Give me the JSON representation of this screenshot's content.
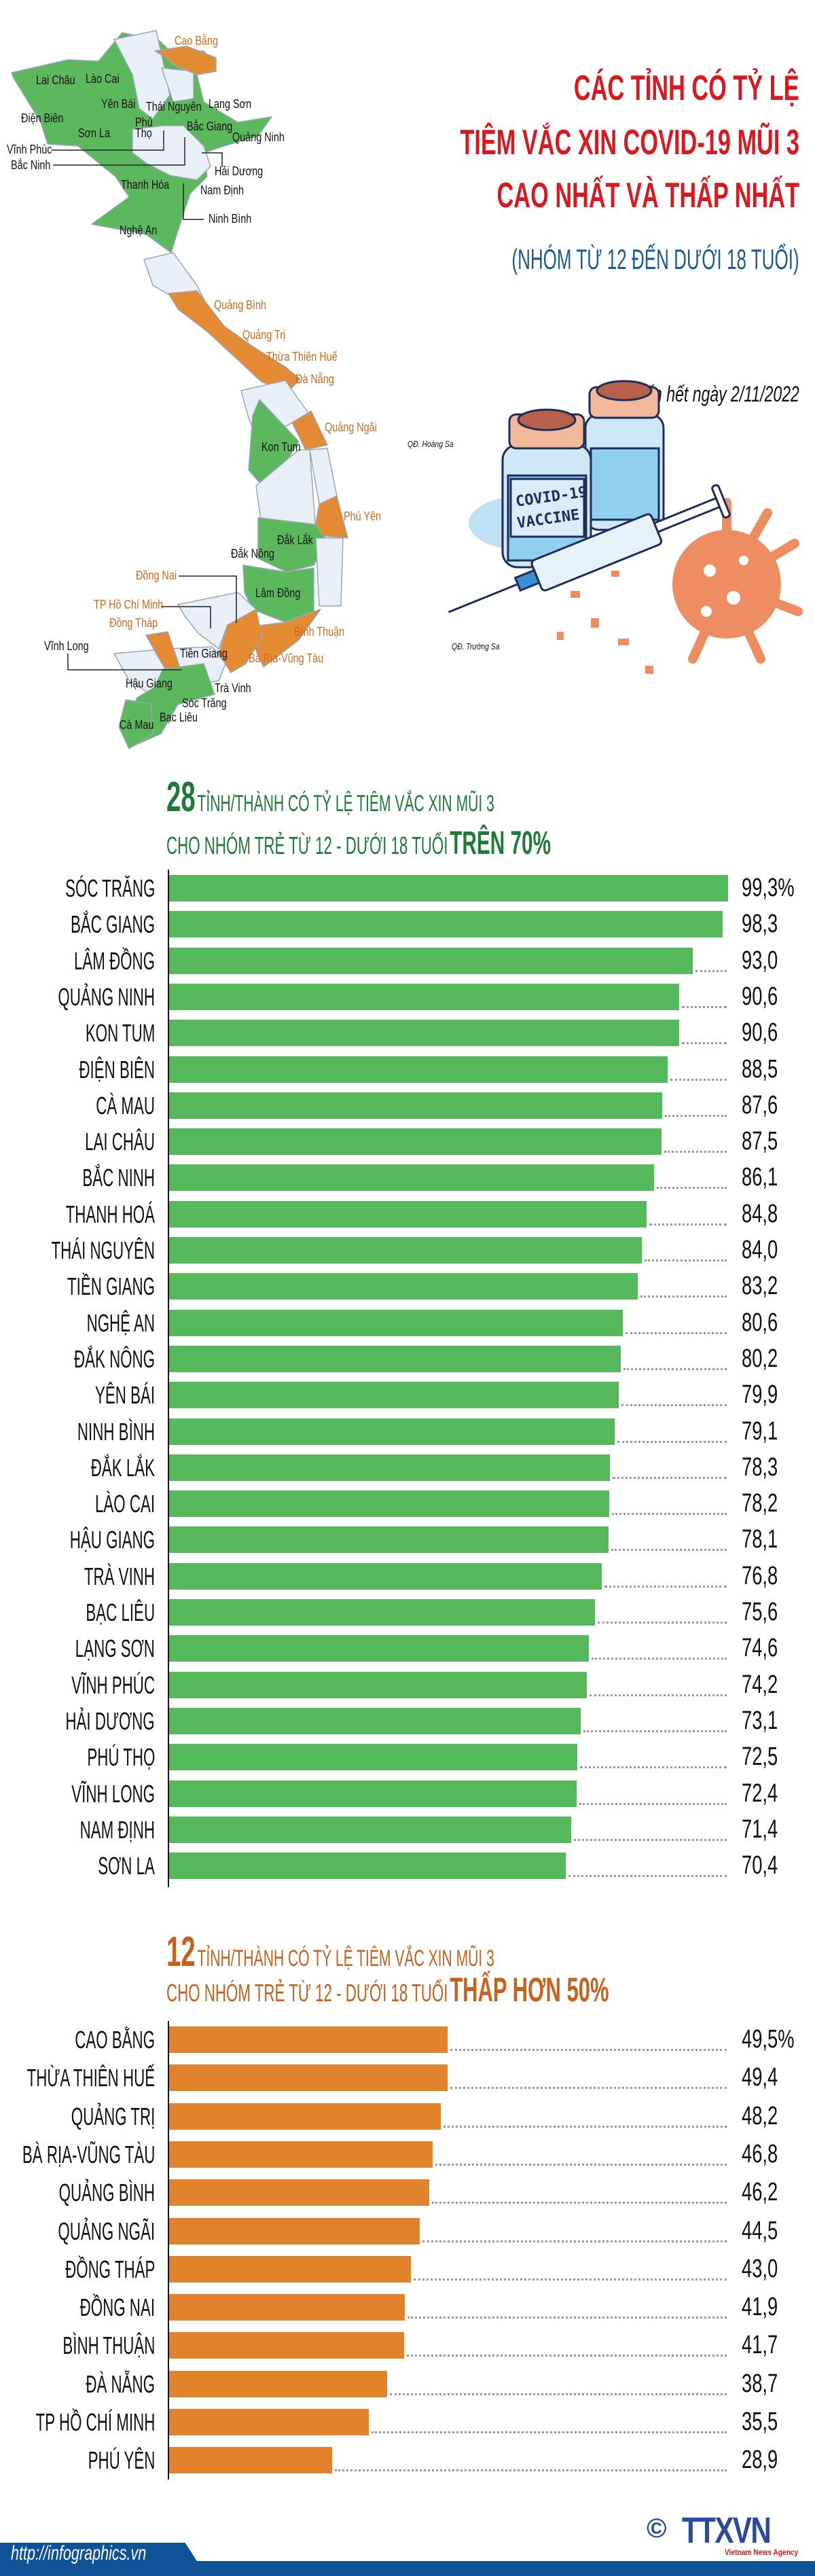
{
  "header": {
    "title_lines": [
      "CÁC TỈNH CÓ TỶ LỆ",
      "TIÊM VẮC XIN COVID-19 MŨI 3",
      "CAO NHẤT VÀ THẤP NHẤT"
    ],
    "subtitle": "(NHÓM TỪ 12 ĐẾN DƯỚI 18 TUỔI)",
    "date_note": "Tính đến hết ngày 2/11/2022",
    "title_color": "#d71920",
    "subtitle_color": "#1a5a9a"
  },
  "map": {
    "colors": {
      "above_70": "#5cb85c",
      "below_50": "#e48a33",
      "other": "#e9eff6"
    },
    "labels": [
      "Cao Bằng",
      "Lai Châu",
      "Lào Cai",
      "Yên Bái",
      "Thái Nguyên",
      "Lạng Sơn",
      "Điện Biên",
      "Phú Thọ",
      "Bắc Giang",
      "Quảng Ninh",
      "Sơn La",
      "Vĩnh Phúc",
      "Bắc Ninh",
      "Hải Dương",
      "Thanh Hóa",
      "Nam Định",
      "Ninh Bình",
      "Nghệ An",
      "Quảng Bình",
      "Quảng Trị",
      "Thừa Thiên Huế",
      "Đà Nẵng",
      "Quảng Ngãi",
      "Kon Tum",
      "Phú Yên",
      "Đắk Lắk",
      "Đắk Nông",
      "Đồng Nai",
      "Lâm Đồng",
      "TP Hồ Chí Minh",
      "Đồng Tháp",
      "Bình Thuận",
      "Vĩnh Long",
      "Tiền Giang",
      "Bà Rịa-Vũng Tàu",
      "Hậu Giang",
      "Trà Vinh",
      "Sóc Trăng",
      "Bạc Liêu",
      "Cà Mau"
    ],
    "islands": [
      "QĐ. Hoàng Sa",
      "QĐ. Trường Sa"
    ]
  },
  "illustration": {
    "vial_label_line1": "COVID-19",
    "vial_label_line2": "VACCINE"
  },
  "chart_data": [
    {
      "type": "bar",
      "orientation": "horizontal",
      "count": "28",
      "title_line1": "TỈNH/THÀNH CÓ TỶ LỆ TIÊM VẮC XIN MŨI 3",
      "title_line2": "CHO NHÓM TRẺ TỪ 12 - DƯỚI 18 TUỔI",
      "title_emphasis": "TRÊN 70%",
      "color": "#55b95b",
      "title_color": "#1f7a3a",
      "unit": "%",
      "xlim": [
        0,
        100
      ],
      "grid": false,
      "categories": [
        "SÓC TRĂNG",
        "BẮC GIANG",
        "LÂM ĐỒNG",
        "QUẢNG NINH",
        "KON TUM",
        "ĐIỆN BIÊN",
        "CÀ MAU",
        "LAI CHÂU",
        "BẮC NINH",
        "THANH HOÁ",
        "THÁI NGUYÊN",
        "TIỀN GIANG",
        "NGHỆ AN",
        "ĐẮK NÔNG",
        "YÊN BÁI",
        "NINH BÌNH",
        "ĐẮK LẮK",
        "LÀO CAI",
        "HẬU GIANG",
        "TRÀ VINH",
        "BẠC LIÊU",
        "LẠNG SƠN",
        "VĨNH PHÚC",
        "HẢI DƯƠNG",
        "PHÚ THỌ",
        "VĨNH LONG",
        "NAM ĐỊNH",
        "SƠN LA"
      ],
      "values": [
        99.3,
        98.3,
        93.0,
        90.6,
        90.6,
        88.5,
        87.6,
        87.5,
        86.1,
        84.8,
        84.0,
        83.2,
        80.6,
        80.2,
        79.9,
        79.1,
        78.3,
        78.2,
        78.1,
        76.8,
        75.6,
        74.6,
        74.2,
        73.1,
        72.5,
        72.4,
        71.4,
        70.4
      ],
      "value_labels": [
        "99,3%",
        "98,3",
        "93,0",
        "90,6",
        "90,6",
        "88,5",
        "87,6",
        "87,5",
        "86,1",
        "84,8",
        "84,0",
        "83,2",
        "80,6",
        "80,2",
        "79,9",
        "79,1",
        "78,3",
        "78,2",
        "78,1",
        "76,8",
        "75,6",
        "74,6",
        "74,2",
        "73,1",
        "72,5",
        "72,4",
        "71,4",
        "70,4"
      ]
    },
    {
      "type": "bar",
      "orientation": "horizontal",
      "count": "12",
      "title_line1": "TỈNH/THÀNH CÓ TỶ LỆ TIÊM VẮC XIN MŨI 3",
      "title_line2": "CHO NHÓM TRẺ TỪ 12 - DƯỚI 18 TUỔI",
      "title_emphasis": "THẤP HƠN 50%",
      "color": "#e2822a",
      "title_color": "#c8601e",
      "unit": "%",
      "xlim": [
        0,
        100
      ],
      "grid": false,
      "categories": [
        "CAO BẰNG",
        "THỪA THIÊN HUẾ",
        "QUẢNG TRỊ",
        "BÀ RỊA-VŨNG TÀU",
        "QUẢNG BÌNH",
        "QUẢNG NGÃI",
        "ĐỒNG THÁP",
        "ĐỒNG NAI",
        "BÌNH THUẬN",
        "ĐÀ NẴNG",
        "TP HỒ CHÍ MINH",
        "PHÚ YÊN"
      ],
      "values": [
        49.5,
        49.4,
        48.2,
        46.8,
        46.2,
        44.5,
        43.0,
        41.9,
        41.7,
        38.7,
        35.5,
        28.9
      ],
      "value_labels": [
        "49,5%",
        "49,4",
        "48,2",
        "46,8",
        "46,2",
        "44,5",
        "43,0",
        "41,9",
        "41,7",
        "38,7",
        "35,5",
        "28,9"
      ]
    }
  ],
  "footer": {
    "url": "http://infographics.vn",
    "logo_text": "TTXVN",
    "logo_subtext": "Vietnam News Agency",
    "copyright_symbol": "©",
    "band_color": "#0f5297"
  }
}
